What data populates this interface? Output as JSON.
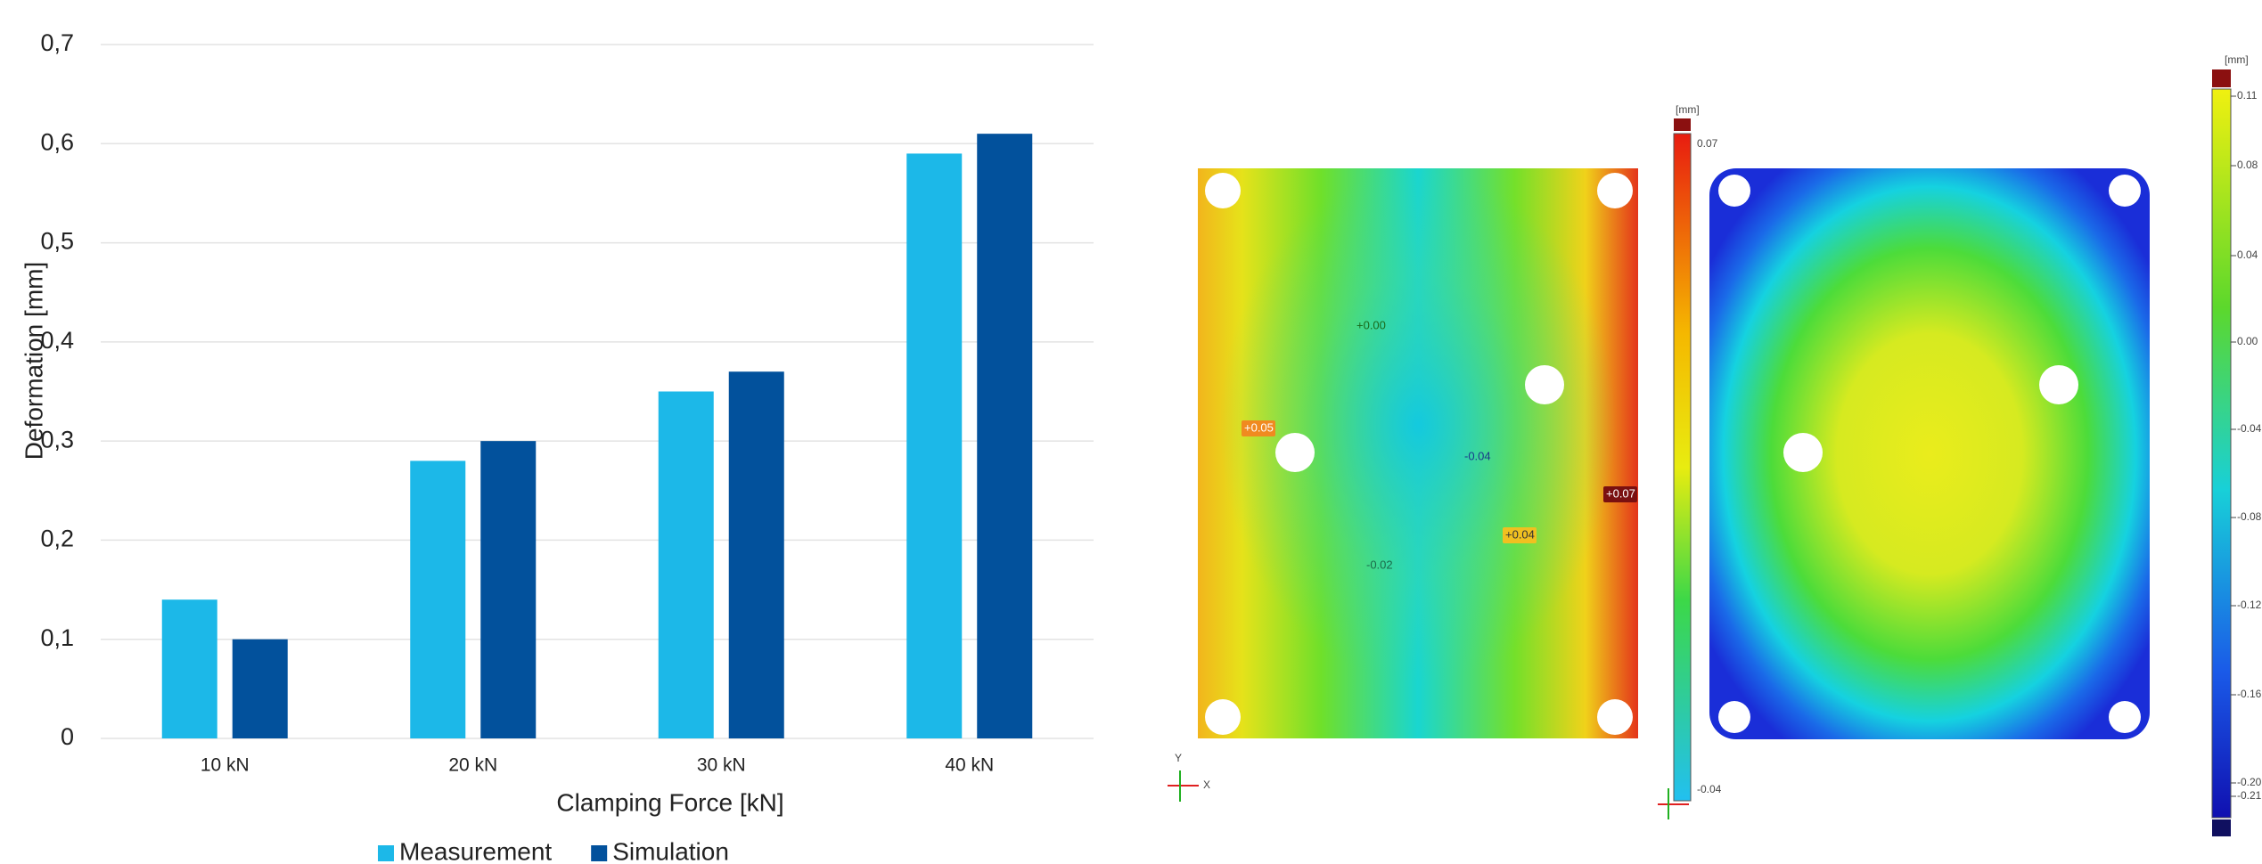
{
  "chart_data": {
    "type": "bar",
    "x_label": "Clamping Force [kN]",
    "y_label": "Deformation [mm]",
    "categories": [
      "10 kN",
      "20 kN",
      "30 kN",
      "40 kN"
    ],
    "series": [
      {
        "name": "Measurement",
        "color": "#1cb8e8",
        "values": [
          0.14,
          0.28,
          0.35,
          0.59
        ]
      },
      {
        "name": "Simulation",
        "color": "#02519c",
        "values": [
          0.1,
          0.3,
          0.37,
          0.61
        ]
      }
    ],
    "ylim": [
      0,
      0.7
    ],
    "yticks": [
      0,
      {
        "value": 0.1,
        "label": "0,1"
      },
      {
        "value": 0.2,
        "label": "0,2"
      },
      {
        "value": 0.3,
        "label": "0,3"
      },
      {
        "value": 0.4,
        "label": "0,4"
      },
      {
        "value": 0.5,
        "label": "0,5"
      },
      {
        "value": 0.6,
        "label": "0,6"
      },
      {
        "value": 0.7,
        "label": "0,7"
      }
    ],
    "grid": true,
    "legend": "bottom"
  },
  "figures": [
    {
      "annotations": [
        "+0.00",
        "+0.05",
        "-0.04",
        "+0.07",
        "+0.04",
        "-0.02"
      ],
      "colorbar": {
        "unit": "[mm]",
        "labels": [
          "0.07",
          "-0.04"
        ]
      },
      "axes": [
        "Y",
        "X"
      ]
    },
    {
      "colorbar": {
        "unit": "[mm]",
        "labels": [
          "0.11",
          "0.08",
          "0.04",
          "0.00",
          "-0.04",
          "-0.08",
          "-0.12",
          "-0.16",
          "-0.20",
          "-0.21"
        ]
      }
    }
  ]
}
